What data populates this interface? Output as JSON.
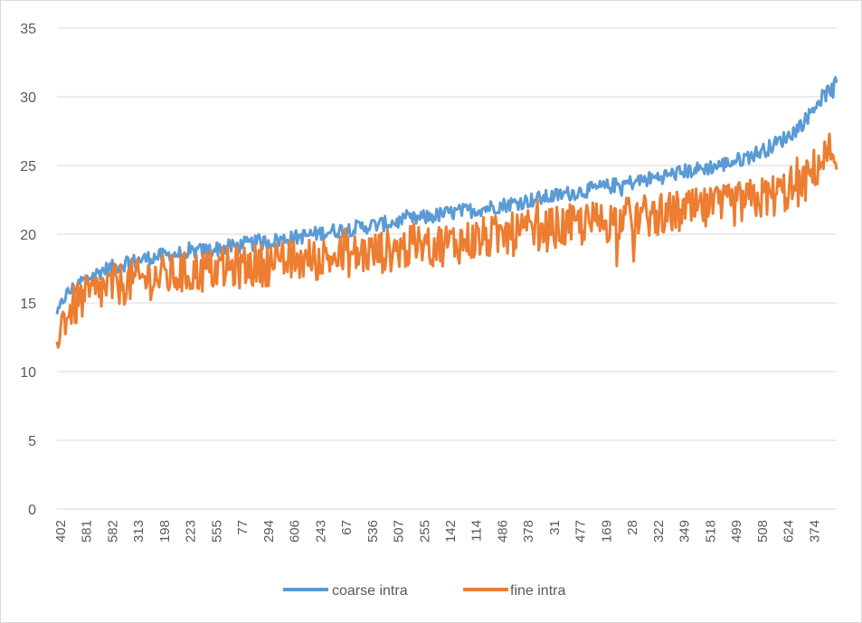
{
  "chart_data": {
    "type": "line",
    "title": "",
    "xlabel": "",
    "ylabel": "",
    "ylim": [
      0,
      35
    ],
    "yticks": [
      0,
      5,
      10,
      15,
      20,
      25,
      30,
      35
    ],
    "grid": true,
    "legend_position": "bottom",
    "xtick_labels": [
      "402",
      "581",
      "582",
      "313",
      "198",
      "223",
      "555",
      "77",
      "294",
      "606",
      "243",
      "67",
      "536",
      "507",
      "255",
      "142",
      "114",
      "486",
      "378",
      "31",
      "477",
      "169",
      "28",
      "322",
      "349",
      "518",
      "499",
      "508",
      "624",
      "374"
    ],
    "series": [
      {
        "name": "coarse intra",
        "color": "#5b9bd5",
        "anchors": [
          [
            0,
            14.0
          ],
          [
            0.01,
            15.5
          ],
          [
            0.03,
            16.5
          ],
          [
            0.06,
            17.4
          ],
          [
            0.09,
            17.9
          ],
          [
            0.12,
            18.3
          ],
          [
            0.16,
            18.6
          ],
          [
            0.2,
            18.9
          ],
          [
            0.25,
            19.3
          ],
          [
            0.3,
            19.7
          ],
          [
            0.35,
            20.2
          ],
          [
            0.4,
            20.6
          ],
          [
            0.45,
            21.0
          ],
          [
            0.5,
            21.5
          ],
          [
            0.55,
            21.9
          ],
          [
            0.6,
            22.4
          ],
          [
            0.65,
            22.9
          ],
          [
            0.7,
            23.4
          ],
          [
            0.75,
            23.9
          ],
          [
            0.8,
            24.5
          ],
          [
            0.85,
            25.0
          ],
          [
            0.88,
            25.5
          ],
          [
            0.91,
            26.2
          ],
          [
            0.94,
            27.2
          ],
          [
            0.96,
            28.3
          ],
          [
            0.975,
            29.6
          ],
          [
            0.99,
            30.4
          ],
          [
            1.0,
            30.8
          ]
        ],
        "noise": 0.55
      },
      {
        "name": "fine intra",
        "color": "#ed7d31",
        "anchors": [
          [
            0,
            12.8
          ],
          [
            0.01,
            14.0
          ],
          [
            0.03,
            15.2
          ],
          [
            0.06,
            16.0
          ],
          [
            0.09,
            16.5
          ],
          [
            0.12,
            16.8
          ],
          [
            0.16,
            17.1
          ],
          [
            0.2,
            17.4
          ],
          [
            0.25,
            17.7
          ],
          [
            0.3,
            18.0
          ],
          [
            0.35,
            18.3
          ],
          [
            0.4,
            18.6
          ],
          [
            0.45,
            19.0
          ],
          [
            0.5,
            19.3
          ],
          [
            0.55,
            19.7
          ],
          [
            0.6,
            20.1
          ],
          [
            0.65,
            20.5
          ],
          [
            0.7,
            20.9
          ],
          [
            0.75,
            21.3
          ],
          [
            0.8,
            21.6
          ],
          [
            0.85,
            21.9
          ],
          [
            0.88,
            22.3
          ],
          [
            0.91,
            22.7
          ],
          [
            0.94,
            23.2
          ],
          [
            0.96,
            23.8
          ],
          [
            0.975,
            25.0
          ],
          [
            0.99,
            25.8
          ],
          [
            1.0,
            26.2
          ]
        ],
        "noise": 1.6
      }
    ]
  }
}
